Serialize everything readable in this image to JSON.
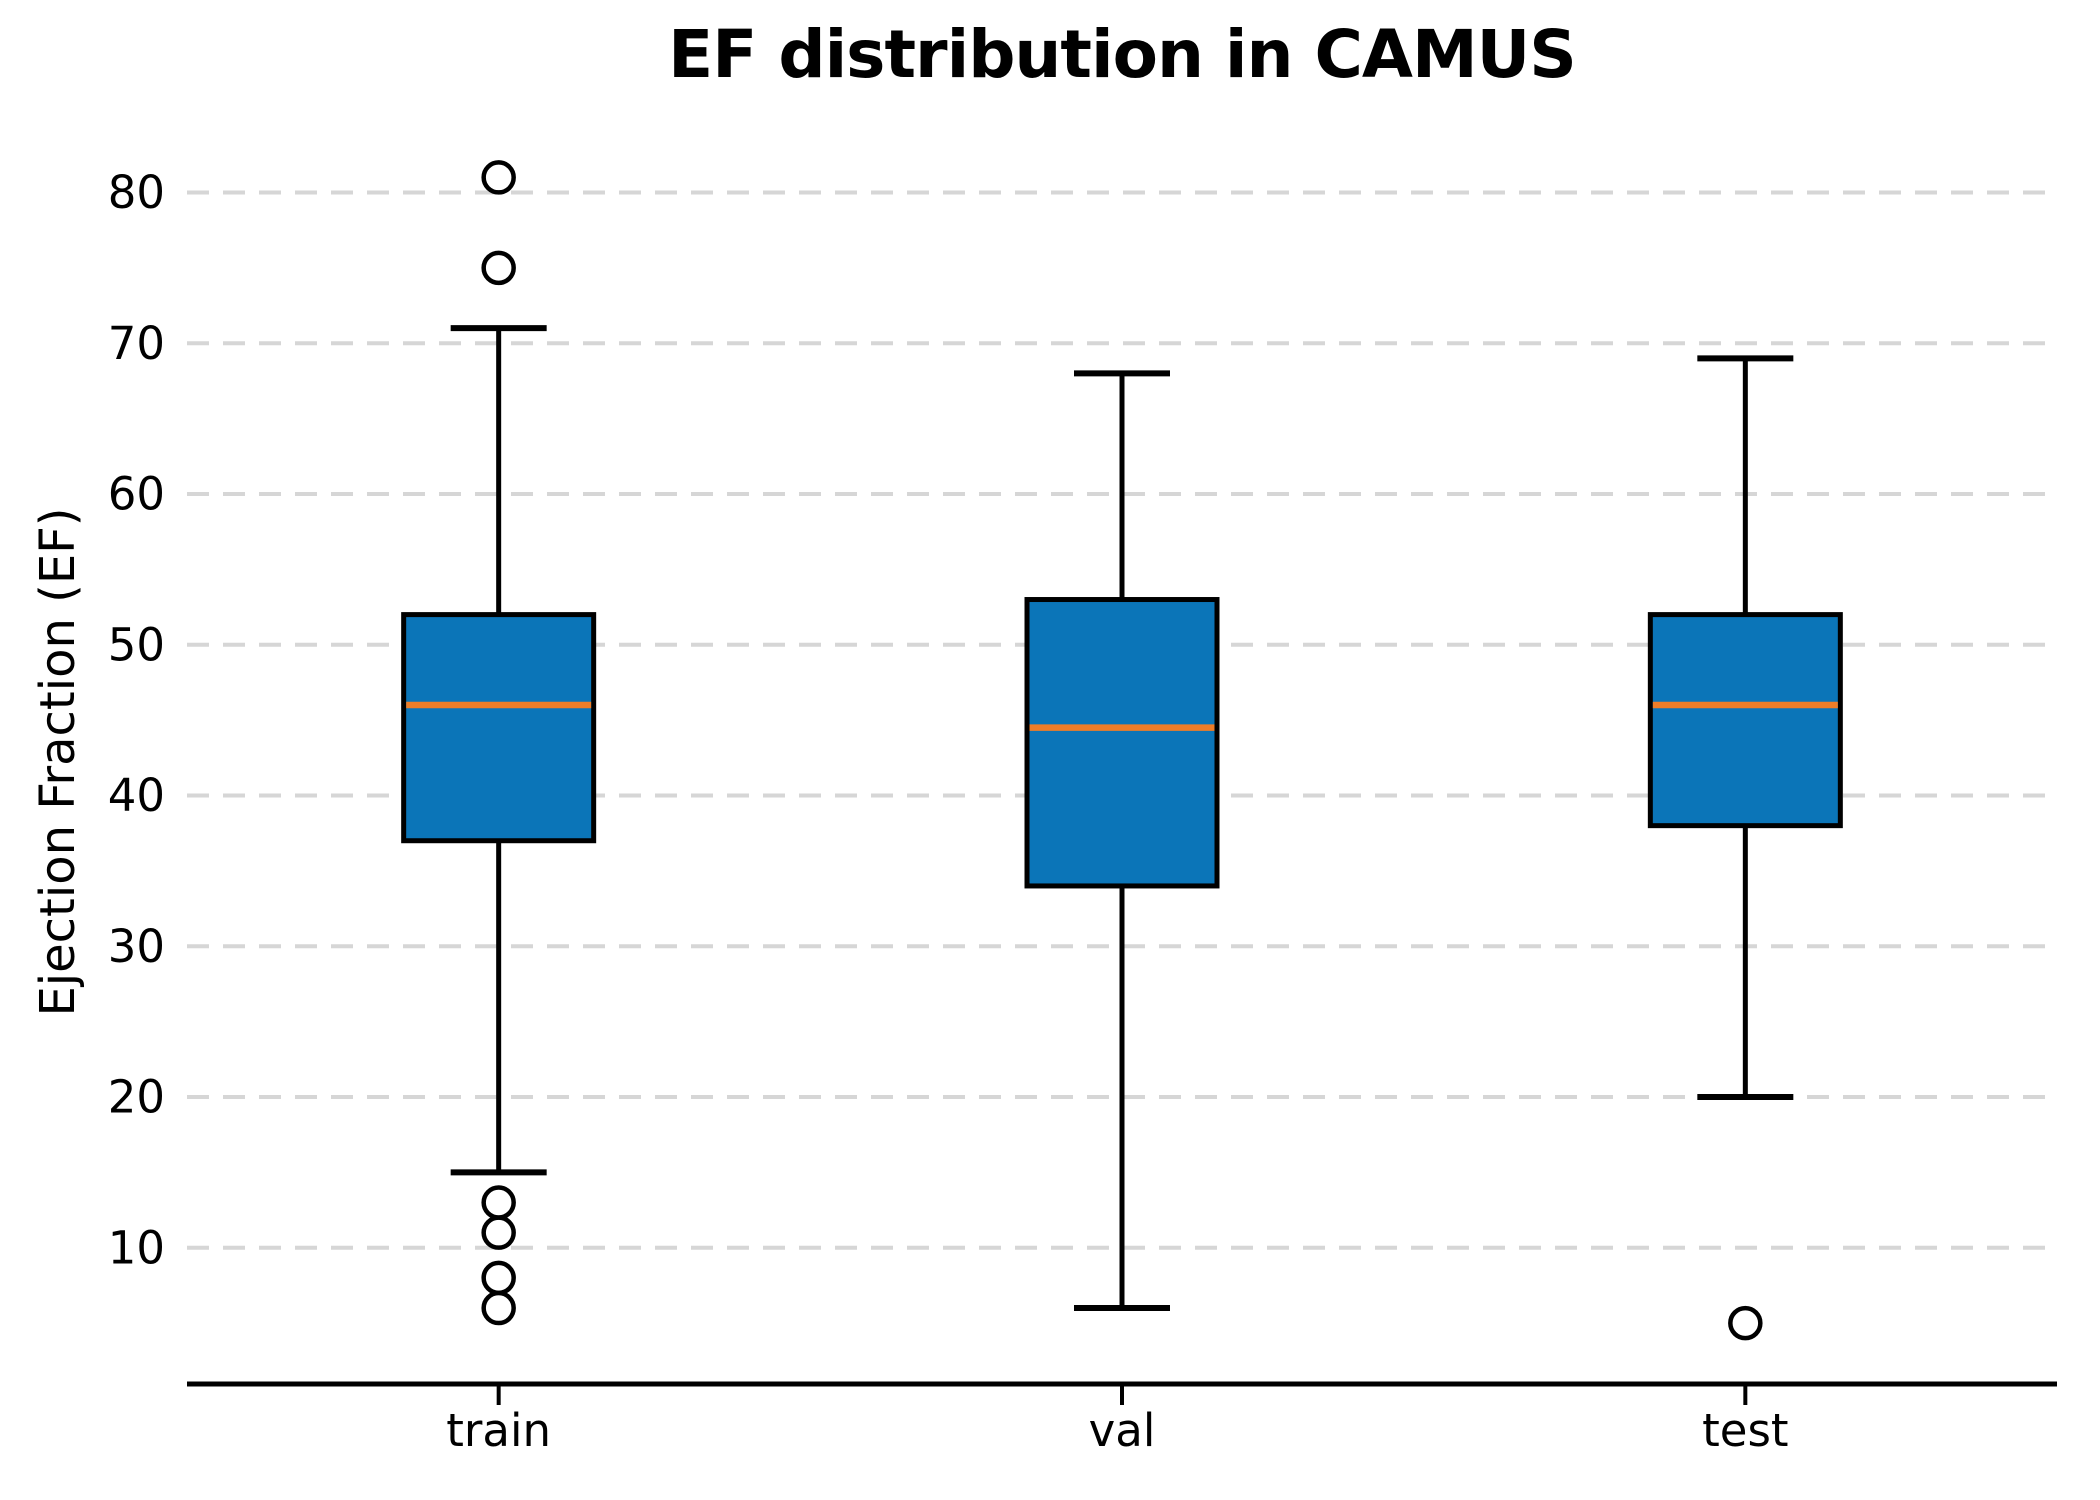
{
  "chart_data": {
    "type": "box",
    "title": "EF distribution in CAMUS",
    "ylabel": "Ejection Fraction (EF)",
    "xlabel": "",
    "categories": [
      "train",
      "val",
      "test"
    ],
    "yticks": [
      10,
      20,
      30,
      40,
      50,
      60,
      70,
      80
    ],
    "ylim": [
      1,
      83
    ],
    "grid": "horizontal-dashed",
    "legend": "none",
    "series": [
      {
        "name": "train",
        "whislo": 15,
        "q1": 37,
        "med": 46,
        "q3": 52,
        "whishi": 71,
        "fliers_high": [
          75,
          81
        ],
        "fliers_low": [
          13,
          11,
          8,
          6
        ]
      },
      {
        "name": "val",
        "whislo": 6,
        "q1": 34,
        "med": 44.5,
        "q3": 53,
        "whishi": 68,
        "fliers_high": [],
        "fliers_low": []
      },
      {
        "name": "test",
        "whislo": 20,
        "q1": 38,
        "med": 46,
        "q3": 52,
        "whishi": 69,
        "fliers_high": [],
        "fliers_low": [
          5
        ]
      }
    ],
    "colors": {
      "box_fill": "#0b75b8",
      "box_edge": "#000000",
      "median": "#ee7d28",
      "whisker": "#000000",
      "flier_edge": "#000000",
      "grid": "#d6d6d6",
      "axis": "#000000",
      "text": "#000000",
      "background": "#ffffff"
    }
  }
}
